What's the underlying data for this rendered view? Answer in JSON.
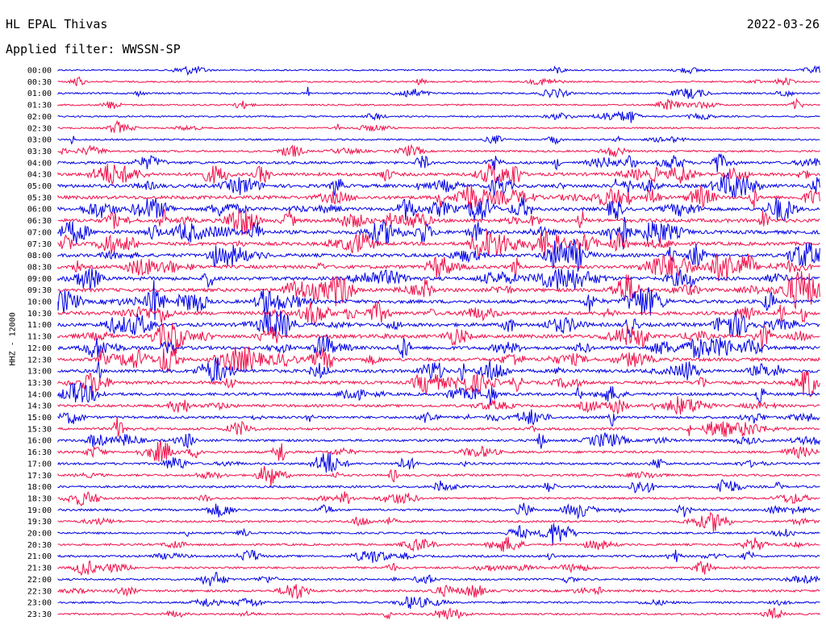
{
  "header": {
    "station": "HL EPAL Thivas",
    "date": "2022-03-26",
    "filter": "Applied filter: WWSSN-SP"
  },
  "channel_label": "HHZ - 12000",
  "colors": {
    "trace_a": "#0000e6",
    "trace_b": "#f0104a",
    "background": "#ffffff"
  },
  "chart_data": {
    "type": "line",
    "ylabel": "HHZ - 12000",
    "series": [
      {
        "name": "00:00",
        "activity": 0.15
      },
      {
        "name": "00:30",
        "activity": 0.2
      },
      {
        "name": "01:00",
        "activity": 0.25
      },
      {
        "name": "01:30",
        "activity": 0.2
      },
      {
        "name": "02:00",
        "activity": 0.2
      },
      {
        "name": "02:30",
        "activity": 0.2
      },
      {
        "name": "03:00",
        "activity": 0.2
      },
      {
        "name": "03:30",
        "activity": 0.3
      },
      {
        "name": "04:00",
        "activity": 0.6
      },
      {
        "name": "04:30",
        "activity": 0.8
      },
      {
        "name": "05:00",
        "activity": 0.9
      },
      {
        "name": "05:30",
        "activity": 0.9
      },
      {
        "name": "06:00",
        "activity": 0.9
      },
      {
        "name": "06:30",
        "activity": 0.95
      },
      {
        "name": "07:00",
        "activity": 0.95
      },
      {
        "name": "07:30",
        "activity": 0.9
      },
      {
        "name": "08:00",
        "activity": 0.9
      },
      {
        "name": "08:30",
        "activity": 0.9
      },
      {
        "name": "09:00",
        "activity": 0.9
      },
      {
        "name": "09:30",
        "activity": 0.9
      },
      {
        "name": "10:00",
        "activity": 0.9
      },
      {
        "name": "10:30",
        "activity": 0.9
      },
      {
        "name": "11:00",
        "activity": 0.95
      },
      {
        "name": "11:30",
        "activity": 0.95
      },
      {
        "name": "12:00",
        "activity": 0.9
      },
      {
        "name": "12:30",
        "activity": 0.85
      },
      {
        "name": "13:00",
        "activity": 0.85
      },
      {
        "name": "13:30",
        "activity": 0.8
      },
      {
        "name": "14:00",
        "activity": 0.7
      },
      {
        "name": "14:30",
        "activity": 0.6
      },
      {
        "name": "15:00",
        "activity": 0.55
      },
      {
        "name": "15:30",
        "activity": 0.55
      },
      {
        "name": "16:00",
        "activity": 0.5
      },
      {
        "name": "16:30",
        "activity": 0.5
      },
      {
        "name": "17:00",
        "activity": 0.45
      },
      {
        "name": "17:30",
        "activity": 0.4
      },
      {
        "name": "18:00",
        "activity": 0.45
      },
      {
        "name": "18:30",
        "activity": 0.4
      },
      {
        "name": "19:00",
        "activity": 0.4
      },
      {
        "name": "19:30",
        "activity": 0.35
      },
      {
        "name": "20:00",
        "activity": 0.35
      },
      {
        "name": "20:30",
        "activity": 0.4
      },
      {
        "name": "21:00",
        "activity": 0.4
      },
      {
        "name": "21:30",
        "activity": 0.4
      },
      {
        "name": "22:00",
        "activity": 0.35
      },
      {
        "name": "22:30",
        "activity": 0.45
      },
      {
        "name": "23:00",
        "activity": 0.35
      },
      {
        "name": "23:30",
        "activity": 0.3
      }
    ]
  }
}
